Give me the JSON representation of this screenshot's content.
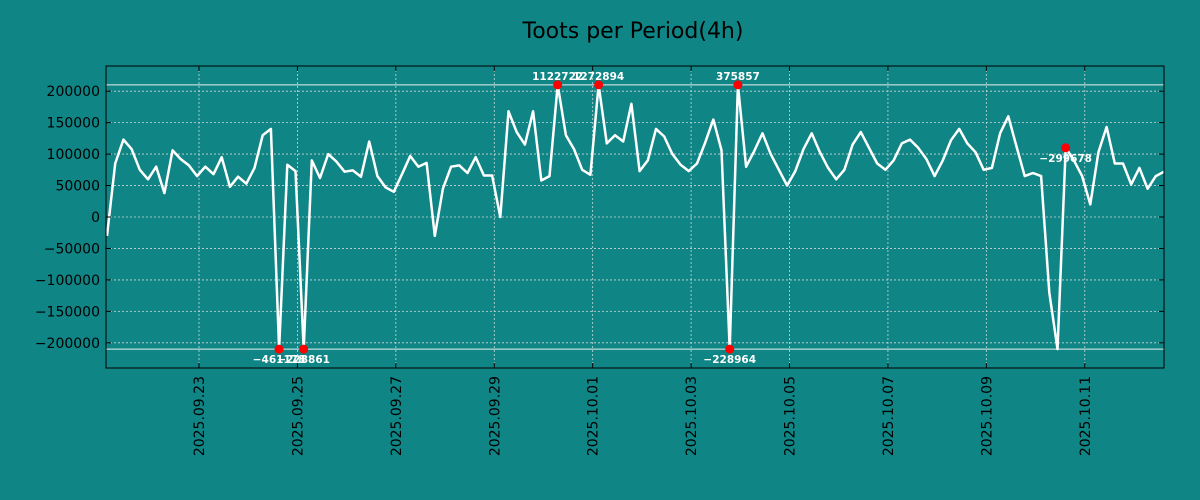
{
  "chart_data": {
    "type": "line",
    "title": "Toots per Period(4h)",
    "xlabel": "",
    "ylabel": "",
    "x_ticks": [
      "2025.09.23",
      "2025.09.25",
      "2025.09.27",
      "2025.09.29",
      "2025.10.01",
      "2025.10.03",
      "2025.10.05",
      "2025.10.07",
      "2025.10.09",
      "2025.10.11"
    ],
    "x_tick_days": [
      1.89,
      3.89,
      5.89,
      7.89,
      9.89,
      11.89,
      13.89,
      15.89,
      17.89,
      19.89
    ],
    "x_range_days": [
      0,
      21.5
    ],
    "y_ticks": [
      200000,
      150000,
      100000,
      50000,
      0,
      -50000,
      -100000,
      -150000,
      -200000
    ],
    "ylim": [
      -240000,
      240000
    ],
    "grid": true,
    "clip_lines": [
      210000,
      -210000
    ],
    "series": [
      {
        "name": "Toots",
        "color": "#ffffff",
        "values": [
          -30000,
          85000,
          123000,
          108000,
          75000,
          60000,
          80000,
          38000,
          106000,
          92000,
          82000,
          65000,
          80000,
          68000,
          95000,
          48000,
          64000,
          53000,
          78000,
          130000,
          140000,
          -210000,
          83000,
          73000,
          -210000,
          90000,
          62000,
          100000,
          88000,
          72000,
          74000,
          64000,
          120000,
          65000,
          47000,
          40000,
          68000,
          97000,
          80000,
          86000,
          -30000,
          45000,
          80000,
          82000,
          70000,
          95000,
          66000,
          66000,
          0,
          168000,
          135000,
          115000,
          168000,
          58000,
          65000,
          210000,
          130000,
          108000,
          75000,
          67000,
          210000,
          117000,
          130000,
          120000,
          180000,
          73000,
          90000,
          140000,
          128000,
          100000,
          83000,
          73000,
          85000,
          118000,
          155000,
          106000,
          -210000,
          210000,
          80000,
          105000,
          133000,
          100000,
          75000,
          50000,
          73000,
          108000,
          133000,
          103000,
          78000,
          60000,
          75000,
          115000,
          135000,
          110000,
          85000,
          75000,
          90000,
          117000,
          123000,
          110000,
          92000,
          65000,
          90000,
          122000,
          140000,
          117000,
          103000,
          75000,
          78000,
          133000,
          160000,
          112000,
          65000,
          70000,
          65000,
          -120000,
          -210000,
          110000,
          90000,
          65000,
          20000,
          103000,
          143000,
          85000,
          85000,
          52000,
          78000,
          45000,
          65000,
          72000
        ]
      }
    ],
    "annotations": [
      {
        "label": "−461178",
        "index": 21,
        "pos": "bottom"
      },
      {
        "label": "−228861",
        "index": 24,
        "pos": "bottom"
      },
      {
        "label": "1122722",
        "index": 55,
        "pos": "top"
      },
      {
        "label": "1272894",
        "index": 60,
        "pos": "top"
      },
      {
        "label": "375857",
        "index": 77,
        "pos": "top"
      },
      {
        "label": "−228964",
        "index": 76,
        "pos": "bottom"
      },
      {
        "label": "−299678",
        "index": 117,
        "pos": "bottom"
      }
    ]
  }
}
